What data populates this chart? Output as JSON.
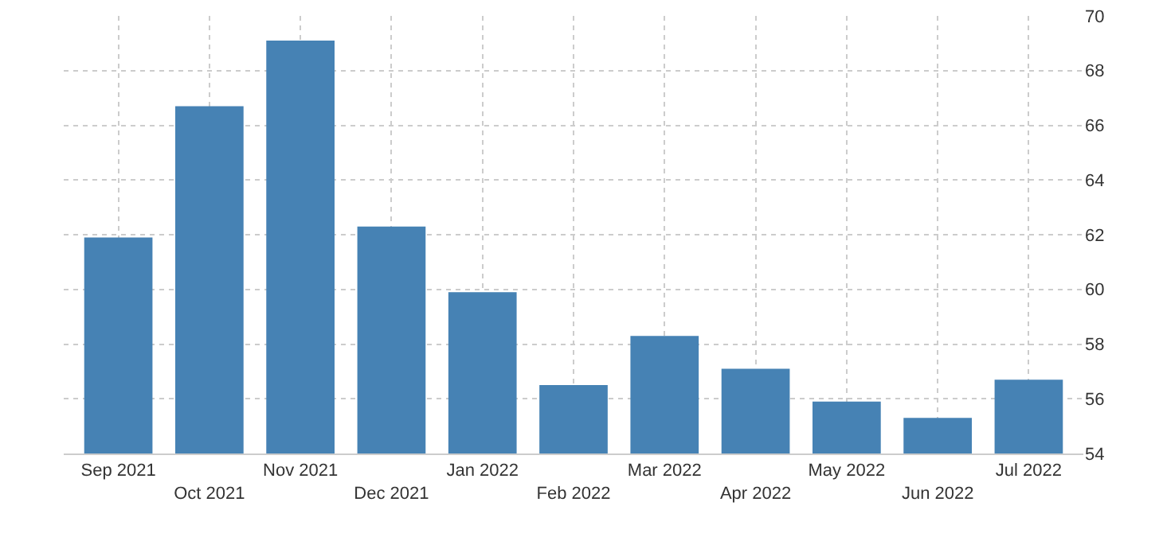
{
  "chart_data": {
    "type": "bar",
    "categories": [
      "Sep 2021",
      "Oct 2021",
      "Nov 2021",
      "Dec 2021",
      "Jan 2022",
      "Feb 2022",
      "Mar 2022",
      "Apr 2022",
      "May 2022",
      "Jun 2022",
      "Jul 2022"
    ],
    "values": [
      61.9,
      66.7,
      69.1,
      62.3,
      59.9,
      56.5,
      58.3,
      57.1,
      55.9,
      55.3,
      56.7
    ],
    "color": "#4682b4",
    "ylim": [
      54,
      70
    ],
    "yticks": [
      54,
      56,
      58,
      60,
      62,
      64,
      66,
      68,
      70
    ],
    "grid": true
  }
}
